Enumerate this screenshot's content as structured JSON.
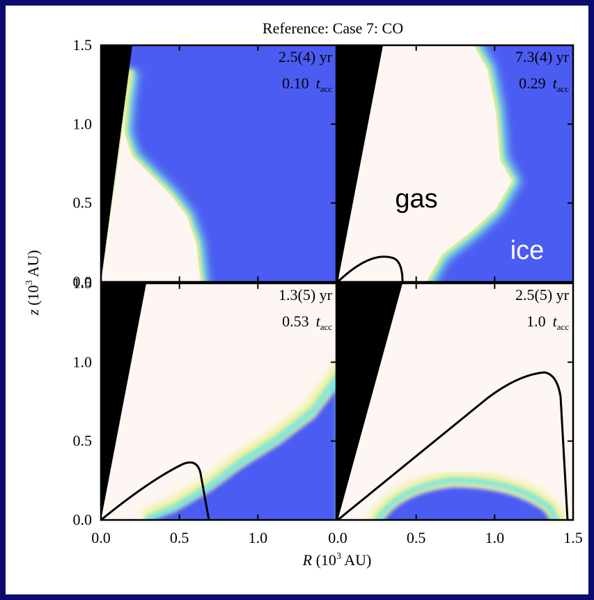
{
  "figure": {
    "title": "Reference: Case 7: CO",
    "xlabel": {
      "symbol": "R",
      "unit_open": "(10",
      "exponent": "3",
      "unit_close": "AU)"
    },
    "ylabel": {
      "symbol": "z",
      "unit_open": "(10",
      "exponent": "3",
      "unit_close": "AU)"
    },
    "tacc_symbol": "t",
    "tacc_subscript": "acc",
    "columns": [
      {
        "xticks": [
          {
            "value": 0,
            "label": "0.0"
          },
          {
            "value": 0.5,
            "label": "0.5"
          },
          {
            "value": 1,
            "label": "1.0"
          }
        ]
      },
      {
        "xticks": [
          {
            "value": 0,
            "label": "0.0"
          },
          {
            "value": 0.5,
            "label": "0.5"
          },
          {
            "value": 1,
            "label": "1.0"
          },
          {
            "value": 1.5,
            "label": "1.5"
          }
        ]
      }
    ],
    "rows": [
      {
        "yticks": [
          {
            "value": 0,
            "label": "0.0"
          },
          {
            "value": 0.5,
            "label": "0.5"
          },
          {
            "value": 1,
            "label": "1.0"
          },
          {
            "value": 1.5,
            "label": "1.5"
          }
        ]
      },
      {
        "yticks": [
          {
            "value": 0,
            "label": "0.0"
          },
          {
            "value": 0.5,
            "label": "0.5"
          },
          {
            "value": 1,
            "label": "1.0"
          },
          {
            "value": 1.5,
            "label": "1.5"
          }
        ]
      }
    ],
    "panels": [
      {
        "time": "2.5(4) yr",
        "tacc": "0.10"
      },
      {
        "time": "7.3(4) yr",
        "tacc": "0.29",
        "labels": [
          "gas",
          "ice"
        ]
      },
      {
        "time": "1.3(5) yr",
        "tacc": "0.53"
      },
      {
        "time": "2.5(5) yr",
        "tacc": "1.0"
      }
    ]
  }
}
